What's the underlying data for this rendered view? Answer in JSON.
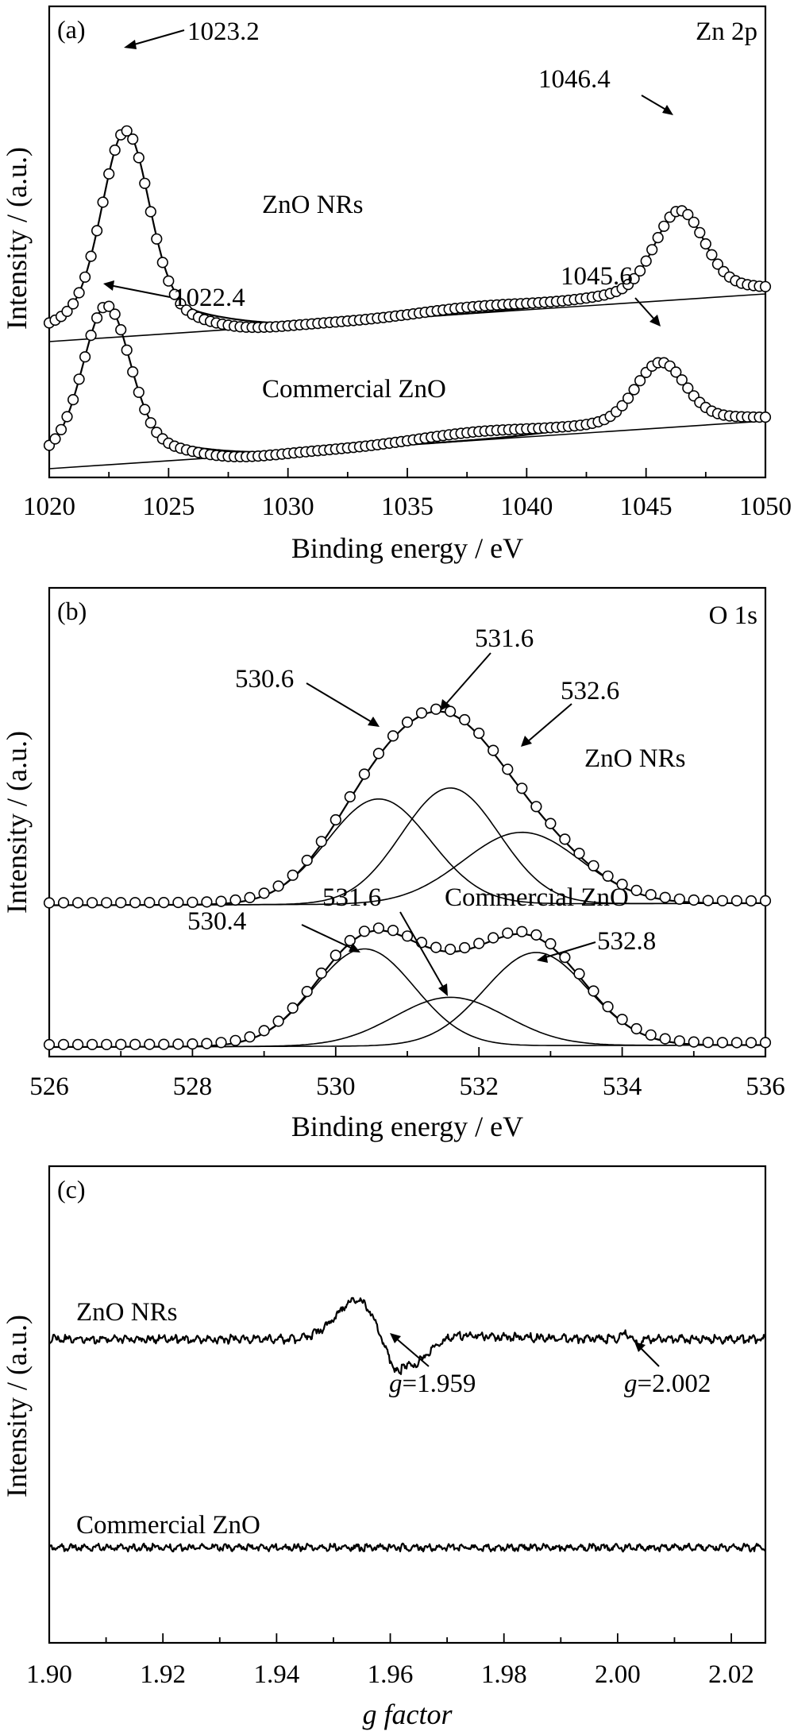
{
  "chart_data": [
    {
      "id": "a",
      "type": "line",
      "panel_label": "(a)",
      "corner_label": "Zn 2p",
      "xlabel": "Binding energy / eV",
      "ylabel": "Intensity / (a.u.)",
      "xlim": [
        1020,
        1050
      ],
      "xticks": [
        1020,
        1025,
        1030,
        1035,
        1040,
        1045,
        1050
      ],
      "xtick_labels": [
        "1020",
        "1025",
        "1030",
        "1035",
        "1040",
        "1045",
        "1050"
      ],
      "series": [
        {
          "name": "ZnO NRs",
          "offset": 1.6,
          "baseline": [
            0.0,
            0.6
          ],
          "peaks": [
            {
              "center": 1023.2,
              "height": 2.2,
              "width": 0.95
            },
            {
              "center": 1046.4,
              "height": 0.95,
              "width": 1.0
            }
          ],
          "hump": {
            "center": 1038.0,
            "height": 0.08,
            "width": 2.5
          },
          "dip": {
            "center": 1027.5,
            "depth": 0.09,
            "width": 1.8
          }
        },
        {
          "name": "Commercial ZnO",
          "offset": 0.0,
          "baseline": [
            0.0,
            0.6
          ],
          "peaks": [
            {
              "center": 1022.4,
              "height": 1.7,
              "width": 0.95
            },
            {
              "center": 1045.6,
              "height": 0.7,
              "width": 1.0
            }
          ],
          "hump": {
            "center": 1038.0,
            "height": 0.1,
            "width": 2.6
          },
          "dip": {
            "center": 1027.3,
            "depth": 0.07,
            "width": 1.8
          }
        }
      ],
      "annotations": [
        "1023.2",
        "1046.4",
        "1022.4",
        "1045.6"
      ]
    },
    {
      "id": "b",
      "type": "line",
      "panel_label": "(b)",
      "corner_label": "O 1s",
      "xlabel": "Binding energy / eV",
      "ylabel": "Intensity / (a.u.)",
      "xlim": [
        526,
        536
      ],
      "xticks": [
        526,
        528,
        530,
        532,
        534,
        536
      ],
      "xtick_labels": [
        "526",
        "528",
        "530",
        "532",
        "534",
        "536"
      ],
      "series": [
        {
          "name": "ZnO NRs",
          "offset": 1.05,
          "components": [
            {
              "center": 530.6,
              "height": 0.78,
              "width": 0.72
            },
            {
              "center": 531.6,
              "height": 0.86,
              "width": 0.68
            },
            {
              "center": 532.6,
              "height": 0.53,
              "width": 0.82
            }
          ]
        },
        {
          "name": "Commercial ZnO",
          "offset": 0.0,
          "components": [
            {
              "center": 530.4,
              "height": 0.72,
              "width": 0.7
            },
            {
              "center": 531.6,
              "height": 0.36,
              "width": 0.78
            },
            {
              "center": 532.8,
              "height": 0.69,
              "width": 0.72
            }
          ]
        }
      ],
      "annotations": [
        "530.6",
        "531.6",
        "532.6",
        "530.4",
        "531.6",
        "532.8"
      ]
    },
    {
      "id": "c",
      "type": "line",
      "panel_label": "(c)",
      "xlabel": "g factor",
      "ylabel": "Intensity / (a.u.)",
      "xlim": [
        1.9,
        2.026
      ],
      "xticks": [
        1.9,
        1.92,
        1.94,
        1.96,
        1.98,
        2.0,
        2.02
      ],
      "xtick_labels": [
        "1.90",
        "1.92",
        "1.94",
        "1.96",
        "1.98",
        "2.00",
        "2.02"
      ],
      "series": [
        {
          "name": "ZnO NRs",
          "signals": [
            1.959,
            2.002
          ]
        },
        {
          "name": "Commercial ZnO",
          "signals": []
        }
      ],
      "annotations": [
        {
          "prefix": "g",
          "value": "=1.959"
        },
        {
          "prefix": "g",
          "value": "=2.002"
        }
      ]
    }
  ]
}
